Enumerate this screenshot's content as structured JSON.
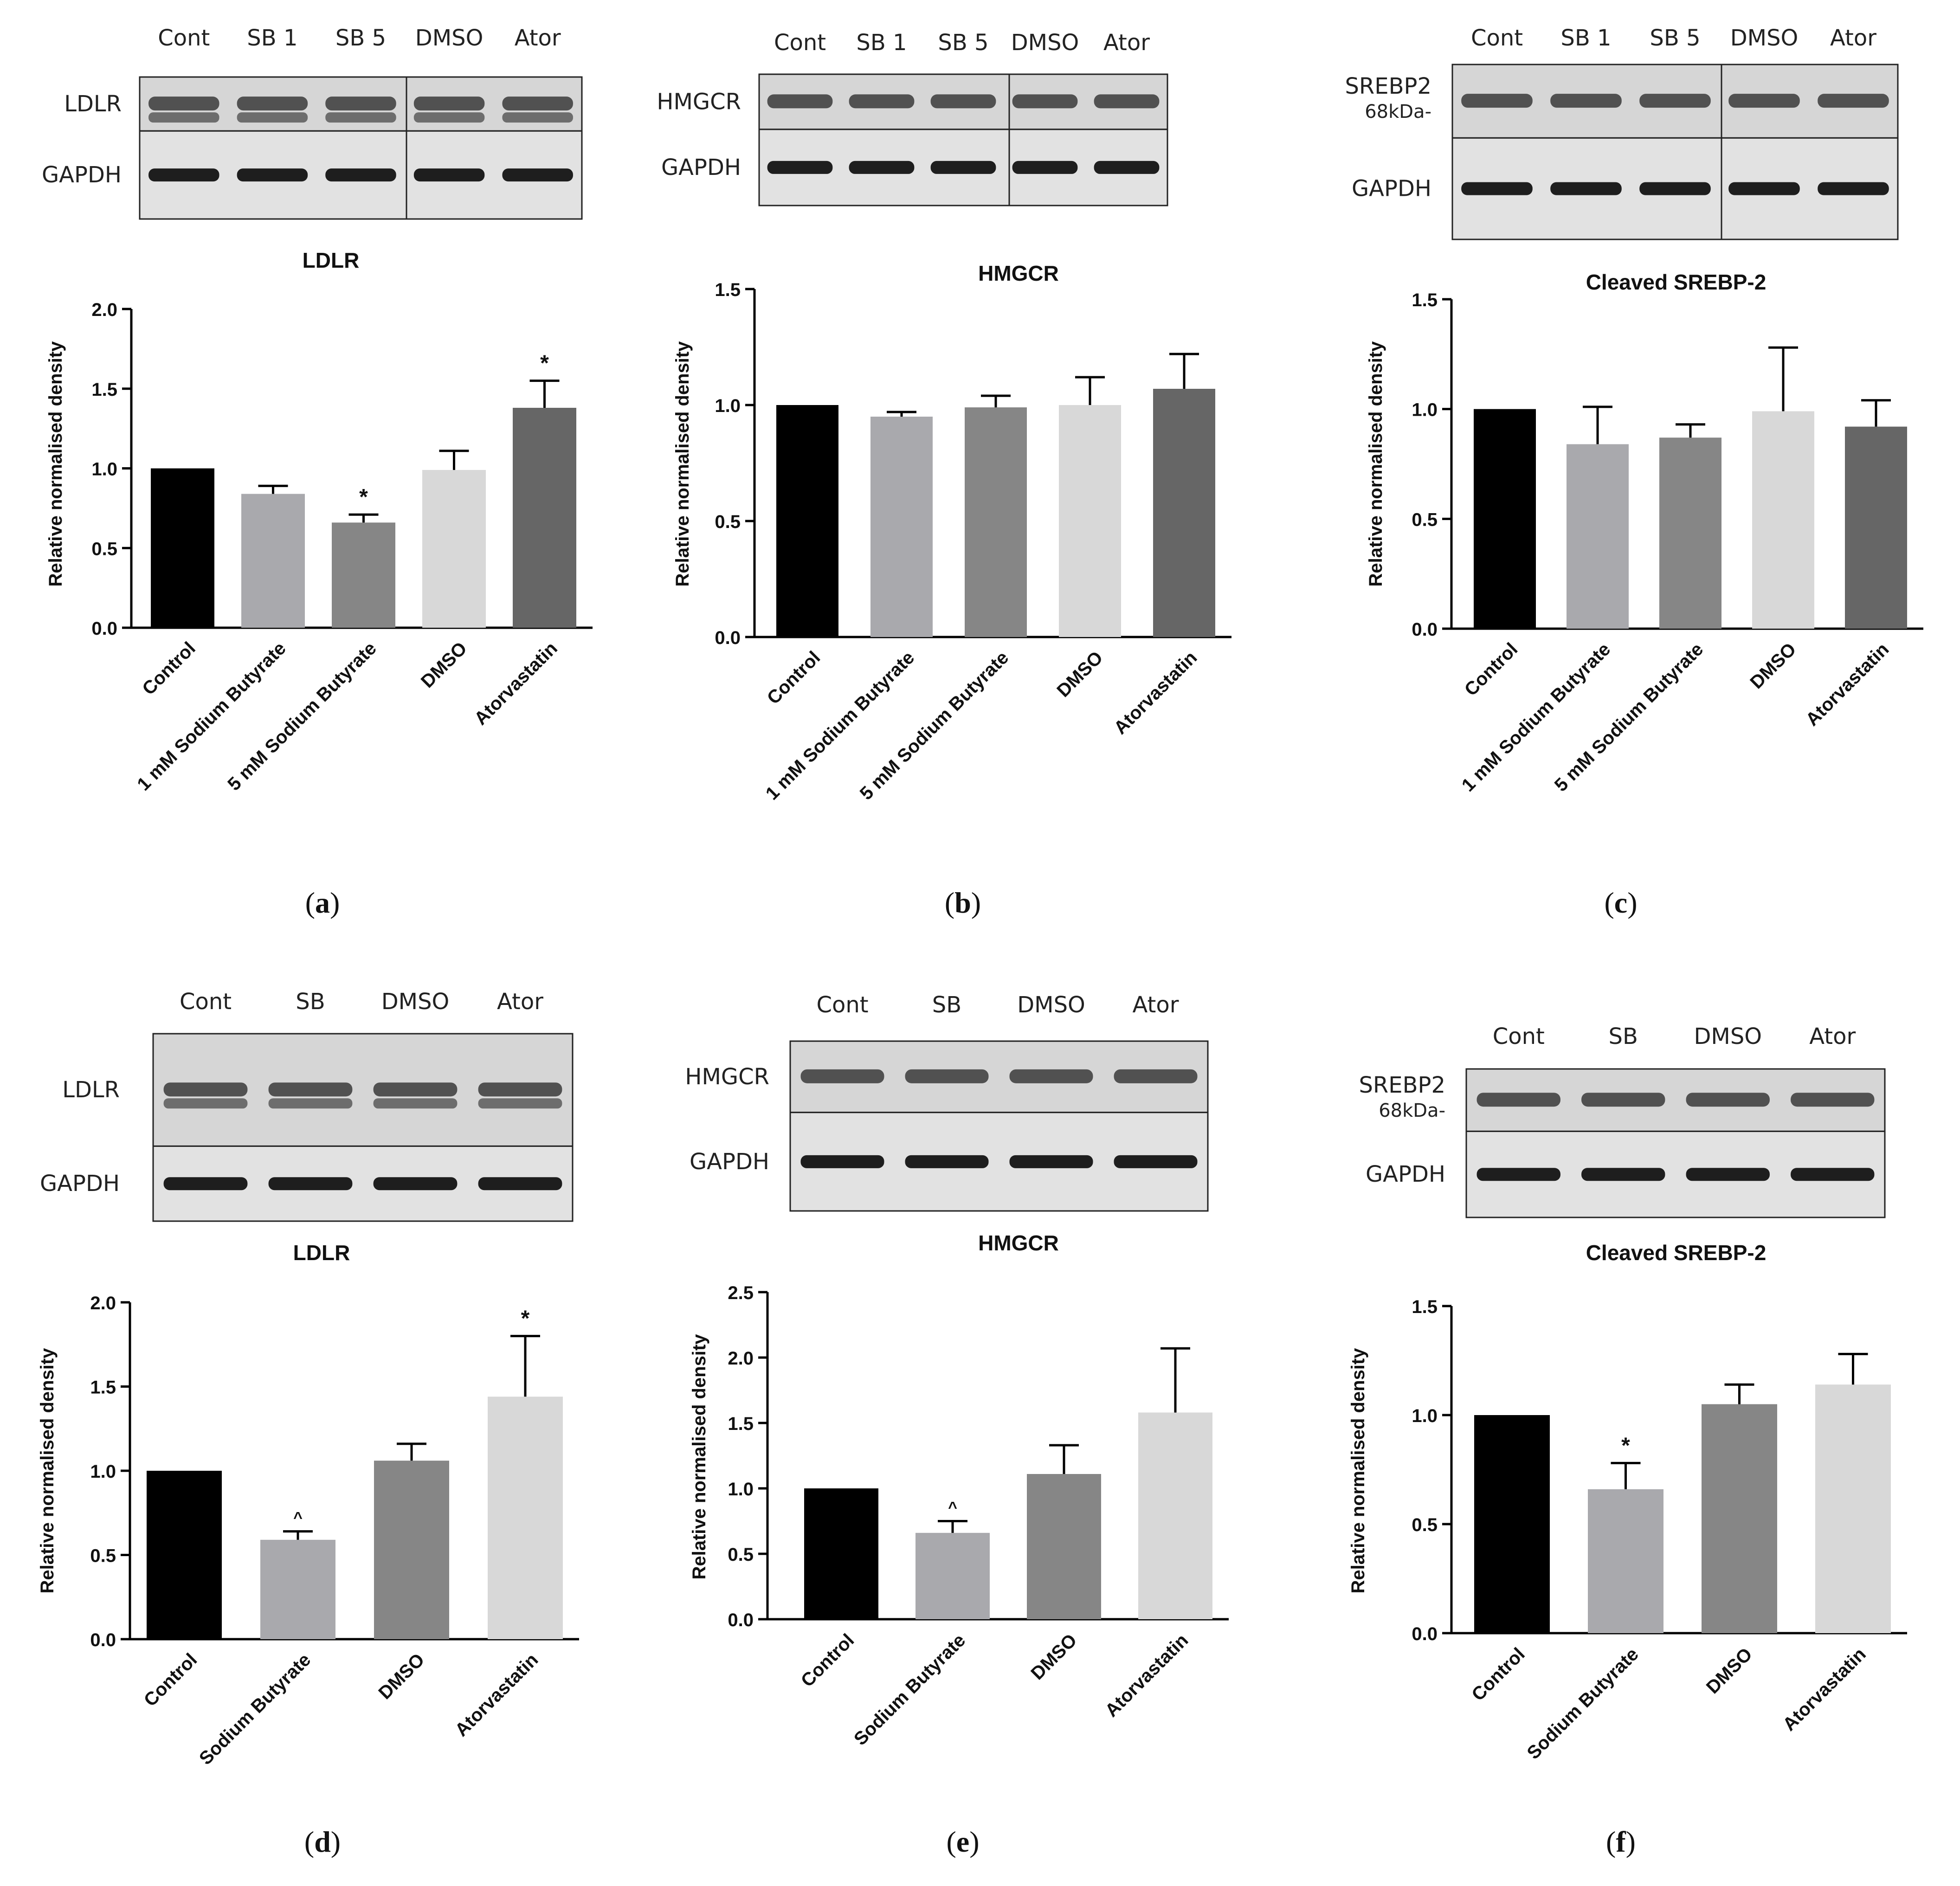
{
  "panels": [
    {
      "id": "a",
      "caption": {
        "open": "(",
        "letter": "a",
        "close": ")"
      },
      "blot": {
        "lanes": [
          "Cont",
          "SB 1",
          "SB 5",
          "DMSO",
          "Ator"
        ],
        "rows": [
          {
            "label": "LDLR",
            "sub": ""
          },
          {
            "label": "GAPDH",
            "sub": ""
          }
        ]
      }
    },
    {
      "id": "b",
      "caption": {
        "open": "(",
        "letter": "b",
        "close": ")"
      },
      "blot": {
        "lanes": [
          "Cont",
          "SB 1",
          "SB 5",
          "DMSO",
          "Ator"
        ],
        "rows": [
          {
            "label": "HMGCR",
            "sub": ""
          },
          {
            "label": "GAPDH",
            "sub": ""
          }
        ]
      }
    },
    {
      "id": "c",
      "caption": {
        "open": "(",
        "letter": "c",
        "close": ")"
      },
      "blot": {
        "lanes": [
          "Cont",
          "SB 1",
          "SB 5",
          "DMSO",
          "Ator"
        ],
        "rows": [
          {
            "label": "SREBP2",
            "sub": "68kDa-"
          },
          {
            "label": "GAPDH",
            "sub": ""
          }
        ]
      }
    },
    {
      "id": "d",
      "caption": {
        "open": "(",
        "letter": "d",
        "close": ")"
      },
      "blot": {
        "lanes": [
          "Cont",
          "SB",
          "DMSO",
          "Ator"
        ],
        "rows": [
          {
            "label": "LDLR",
            "sub": ""
          },
          {
            "label": "GAPDH",
            "sub": ""
          }
        ]
      }
    },
    {
      "id": "e",
      "caption": {
        "open": "(",
        "letter": "e",
        "close": ")"
      },
      "blot": {
        "lanes": [
          "Cont",
          "SB",
          "DMSO",
          "Ator"
        ],
        "rows": [
          {
            "label": "HMGCR",
            "sub": ""
          },
          {
            "label": "GAPDH",
            "sub": ""
          }
        ]
      }
    },
    {
      "id": "f",
      "caption": {
        "open": "(",
        "letter": "f",
        "close": ")"
      },
      "blot": {
        "lanes": [
          "Cont",
          "SB",
          "DMSO",
          "Ator"
        ],
        "rows": [
          {
            "label": "SREBP2",
            "sub": "68kDa-"
          },
          {
            "label": "GAPDH",
            "sub": ""
          }
        ]
      }
    }
  ],
  "chart_data": [
    {
      "panel": "a",
      "type": "bar",
      "title": "LDLR",
      "ylabel": "Relative normalised density",
      "xlabel": "",
      "ylim": [
        0,
        2.0
      ],
      "yticks": [
        "0.0",
        "0.5",
        "1.0",
        "1.5",
        "2.0"
      ],
      "categories": [
        "Control",
        "1 mM Sodium Butyrate",
        "5 mM Sodium Butyrate",
        "DMSO",
        "Atorvastatin"
      ],
      "values": [
        1.0,
        0.84,
        0.66,
        0.99,
        1.38
      ],
      "errors": [
        0.0,
        0.05,
        0.05,
        0.12,
        0.17
      ],
      "annotations": [
        "",
        "",
        "*",
        "",
        "*"
      ],
      "colors": [
        "#000000",
        "#a9a9ad",
        "#868686",
        "#d8d8d8",
        "#666666"
      ]
    },
    {
      "panel": "b",
      "type": "bar",
      "title": "HMGCR",
      "ylabel": "Relative normalised density",
      "xlabel": "",
      "ylim": [
        0,
        1.5
      ],
      "yticks": [
        "0.0",
        "0.5",
        "1.0",
        "1.5"
      ],
      "categories": [
        "Control",
        "1 mM Sodium Butyrate",
        "5 mM Sodium Butyrate",
        "DMSO",
        "Atorvastatin"
      ],
      "values": [
        1.0,
        0.95,
        0.99,
        1.0,
        1.07
      ],
      "errors": [
        0.0,
        0.02,
        0.05,
        0.12,
        0.15
      ],
      "annotations": [
        "",
        "",
        "",
        "",
        ""
      ],
      "colors": [
        "#000000",
        "#a9a9ad",
        "#868686",
        "#d8d8d8",
        "#666666"
      ]
    },
    {
      "panel": "c",
      "type": "bar",
      "title": "Cleaved SREBP-2",
      "ylabel": "Relative normalised density",
      "xlabel": "",
      "ylim": [
        0,
        1.5
      ],
      "yticks": [
        "0.0",
        "0.5",
        "1.0",
        "1.5"
      ],
      "categories": [
        "Control",
        "1 mM Sodium Butyrate",
        "5 mM Sodium Butyrate",
        "DMSO",
        "Atorvastatin"
      ],
      "values": [
        1.0,
        0.84,
        0.87,
        0.99,
        0.92
      ],
      "errors": [
        0.0,
        0.17,
        0.06,
        0.29,
        0.12
      ],
      "annotations": [
        "",
        "",
        "",
        "",
        ""
      ],
      "colors": [
        "#000000",
        "#a9a9ad",
        "#868686",
        "#d8d8d8",
        "#666666"
      ]
    },
    {
      "panel": "d",
      "type": "bar",
      "title": "LDLR",
      "ylabel": "Relative normalised density",
      "xlabel": "",
      "ylim": [
        0,
        2.0
      ],
      "yticks": [
        "0.0",
        "0.5",
        "1.0",
        "1.5",
        "2.0"
      ],
      "categories": [
        "Control",
        "Sodium Butyrate",
        "DMSO",
        "Atorvastatin"
      ],
      "values": [
        1.0,
        0.59,
        1.06,
        1.44
      ],
      "errors": [
        0.0,
        0.05,
        0.1,
        0.36
      ],
      "annotations": [
        "",
        "^",
        "",
        "*"
      ],
      "colors": [
        "#000000",
        "#a9a9ad",
        "#868686",
        "#d8d8d8"
      ]
    },
    {
      "panel": "e",
      "type": "bar",
      "title": "HMGCR",
      "ylabel": "Relative normalised density",
      "xlabel": "",
      "ylim": [
        0,
        2.5
      ],
      "yticks": [
        "0.0",
        "0.5",
        "1.0",
        "1.5",
        "2.0",
        "2.5"
      ],
      "categories": [
        "Control",
        "Sodium Butyrate",
        "DMSO",
        "Atorvastatin"
      ],
      "values": [
        1.0,
        0.66,
        1.11,
        1.58
      ],
      "errors": [
        0.0,
        0.09,
        0.22,
        0.49
      ],
      "annotations": [
        "",
        "^",
        "",
        ""
      ],
      "colors": [
        "#000000",
        "#a9a9ad",
        "#868686",
        "#d8d8d8"
      ]
    },
    {
      "panel": "f",
      "type": "bar",
      "title": "Cleaved SREBP-2",
      "ylabel": "Relative normalised density",
      "xlabel": "",
      "ylim": [
        0,
        1.5
      ],
      "yticks": [
        "0.0",
        "0.5",
        "1.0",
        "1.5"
      ],
      "categories": [
        "Control",
        "Sodium Butyrate",
        "DMSO",
        "Atorvastatin"
      ],
      "values": [
        1.0,
        0.66,
        1.05,
        1.14
      ],
      "errors": [
        0.0,
        0.12,
        0.09,
        0.14
      ],
      "annotations": [
        "",
        "*",
        "",
        ""
      ],
      "colors": [
        "#000000",
        "#a9a9ad",
        "#868686",
        "#d8d8d8"
      ]
    }
  ]
}
